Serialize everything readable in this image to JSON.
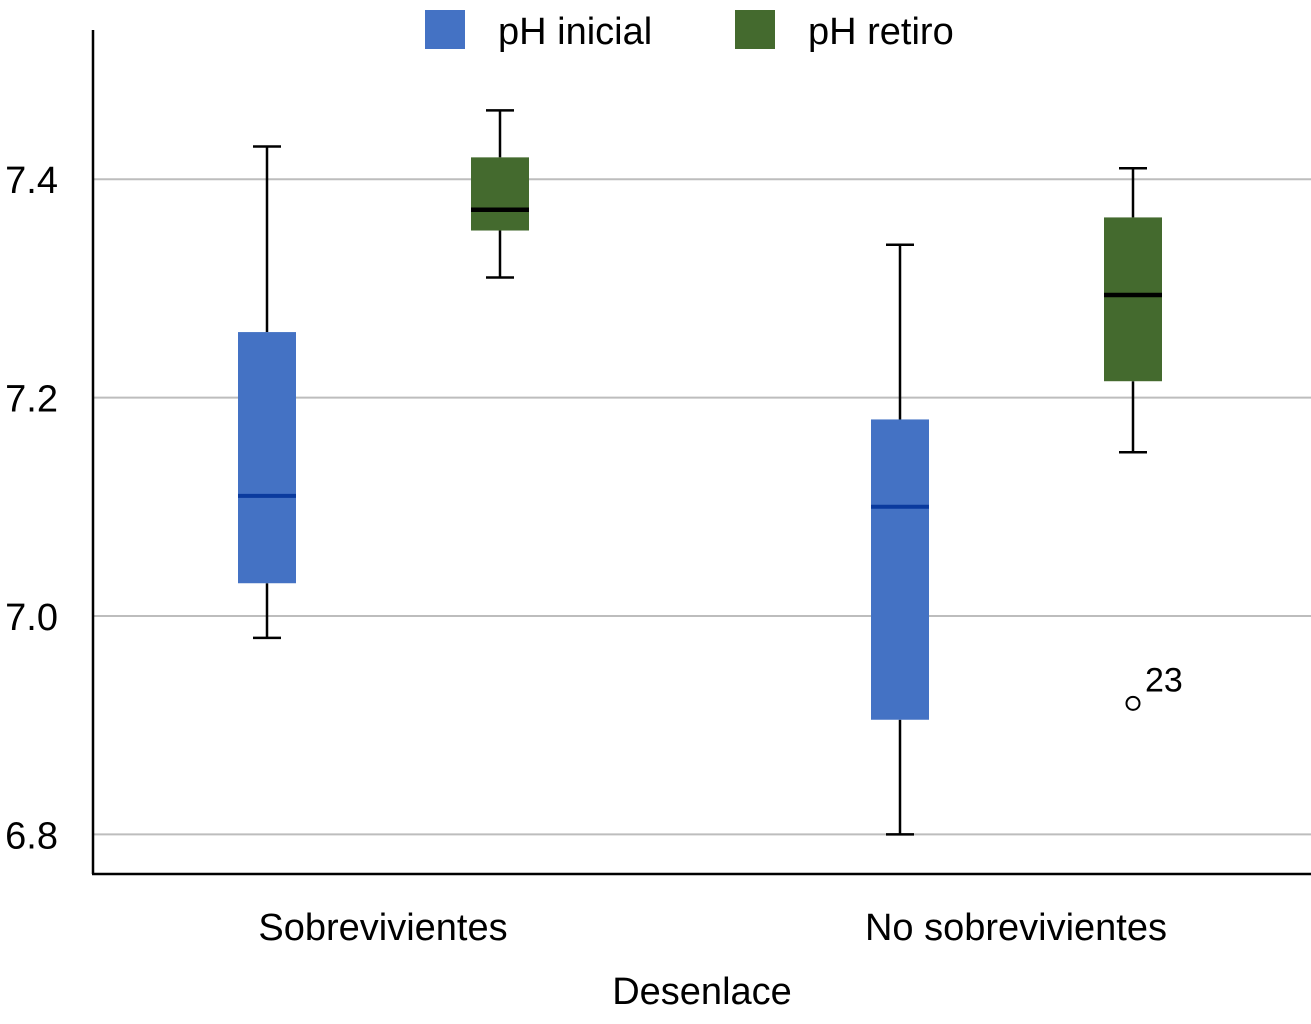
{
  "chart_data": {
    "type": "boxplot",
    "title": "",
    "xlabel": "Desenlace",
    "ylabel": "",
    "ylim": [
      6.77,
      7.535
    ],
    "yticks": [
      6.8,
      7.0,
      7.2,
      7.4
    ],
    "ytick_labels": [
      "6.8",
      "7.0",
      "7.2",
      "7.4"
    ],
    "grid": true,
    "legend_position": "top-center",
    "categories": [
      "Sobrevivientes",
      "No sobrevivientes"
    ],
    "series": [
      {
        "name": "pH inicial",
        "color": "#4472C4",
        "median_color": "#0A3A9E",
        "boxes": [
          {
            "whisker_low": 6.98,
            "q1": 7.03,
            "median": 7.11,
            "q3": 7.26,
            "whisker_high": 7.43,
            "outliers": []
          },
          {
            "whisker_low": 6.8,
            "q1": 6.905,
            "median": 7.1,
            "q3": 7.18,
            "whisker_high": 7.34,
            "outliers": []
          }
        ]
      },
      {
        "name": "pH retiro",
        "color": "#446A2E",
        "median_color": "#000000",
        "boxes": [
          {
            "whisker_low": 7.31,
            "q1": 7.353,
            "median": 7.372,
            "q3": 7.42,
            "whisker_high": 7.463,
            "outliers": []
          },
          {
            "whisker_low": 7.15,
            "q1": 7.215,
            "median": 7.294,
            "q3": 7.365,
            "whisker_high": 7.41,
            "outliers": [
              {
                "value": 6.92,
                "label": "23"
              }
            ]
          }
        ]
      }
    ]
  }
}
